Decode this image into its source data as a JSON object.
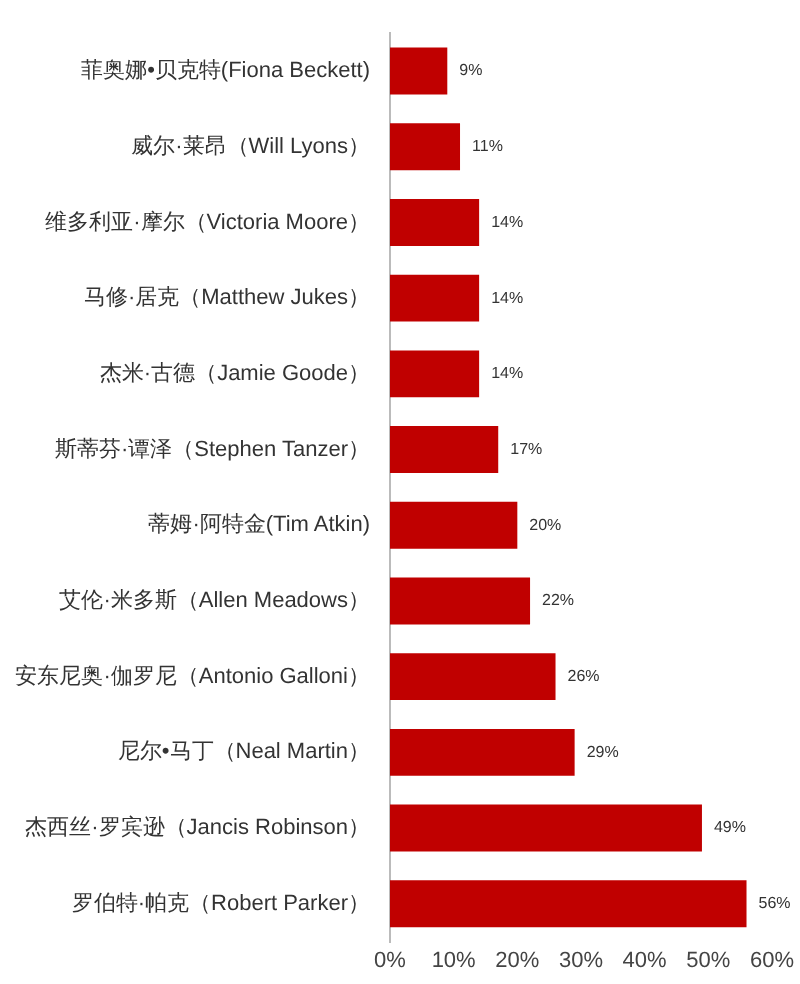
{
  "chart_data": {
    "type": "bar",
    "orientation": "horizontal",
    "categories": [
      "菲奥娜•贝克特(Fiona Beckett)",
      "威尔·莱昂（Will Lyons）",
      "维多利亚·摩尔（Victoria Moore）",
      "马修·居克（Matthew Jukes）",
      "杰米·古德（Jamie Goode）",
      "斯蒂芬·谭泽（Stephen Tanzer）",
      "蒂姆·阿特金(Tim Atkin)",
      "艾伦·米多斯（Allen Meadows）",
      "安东尼奥·伽罗尼（Antonio Galloni）",
      "尼尔•马丁（Neal Martin）",
      "杰西丝·罗宾逊（Jancis Robinson）",
      "罗伯特·帕克（Robert Parker）"
    ],
    "values": [
      9,
      11,
      14,
      14,
      14,
      17,
      20,
      22,
      26,
      29,
      49,
      56
    ],
    "value_labels": [
      "9%",
      "11%",
      "14%",
      "14%",
      "14%",
      "17%",
      "20%",
      "22%",
      "26%",
      "29%",
      "49%",
      "56%"
    ],
    "color": "#c00000",
    "xlim": [
      0,
      60
    ],
    "xticks": [
      {
        "value": 0,
        "label": "0%"
      },
      {
        "value": 10,
        "label": "10%"
      },
      {
        "value": 20,
        "label": "20%"
      },
      {
        "value": 30,
        "label": "30%"
      },
      {
        "value": 40,
        "label": "40%"
      },
      {
        "value": 50,
        "label": "50%"
      },
      {
        "value": 60,
        "label": "60%"
      }
    ],
    "grid": false,
    "legend": false
  }
}
